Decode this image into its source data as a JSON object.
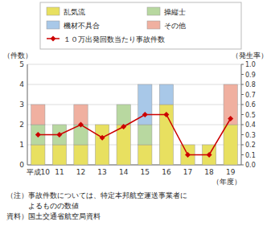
{
  "chart_data": {
    "type": "bar",
    "stacked": true,
    "categories": [
      "平成10",
      "11",
      "12",
      "13",
      "14",
      "15",
      "16",
      "17",
      "18",
      "19"
    ],
    "series": [
      {
        "name": "乱気流",
        "color": "#e8e060",
        "values": [
          1,
          1,
          1,
          2,
          2,
          1,
          3,
          1,
          1,
          2
        ]
      },
      {
        "name": "操縦士",
        "color": "#b8d8a0",
        "values": [
          1,
          1,
          1,
          0,
          1,
          1,
          0,
          0,
          0,
          0
        ]
      },
      {
        "name": "機材不具合",
        "color": "#a8c8e8",
        "values": [
          0,
          0,
          0,
          0,
          0,
          2,
          1,
          0,
          0,
          0
        ]
      },
      {
        "name": "その他",
        "color": "#f0b0a0",
        "values": [
          1,
          0,
          1,
          0,
          0,
          0,
          0,
          0,
          0,
          2
        ]
      },
      {
        "name": "１０万出発回数当たり事故件数",
        "type": "line",
        "axis": "y2",
        "marker": "diamond",
        "color": "#cc0000",
        "values": [
          0.3,
          0.3,
          0.4,
          0.27,
          0.38,
          0.5,
          0.5,
          0.1,
          0.1,
          0.46
        ]
      }
    ],
    "y_label": "（件数）",
    "y2_label": "（発生率）",
    "x_label": "（年度）",
    "ylim": [
      0,
      5
    ],
    "yticks": [
      0,
      1,
      2,
      3,
      4,
      5
    ],
    "y2lim": [
      0.0,
      1.0
    ],
    "y2ticks": [
      {
        "value": 0.0,
        "label": "0.0"
      },
      0.1,
      0.2,
      0.3,
      0.4,
      0.5,
      0.6,
      0.7,
      0.8,
      0.9,
      {
        "value": 1.0,
        "label": "1.0"
      }
    ],
    "grid": true,
    "legend": "top",
    "annotations": [
      "（注）事故件数については、特定本邦航空運送事業者に",
      "　　　よるものの数値",
      "資料）国土交通省航空局資料"
    ]
  }
}
